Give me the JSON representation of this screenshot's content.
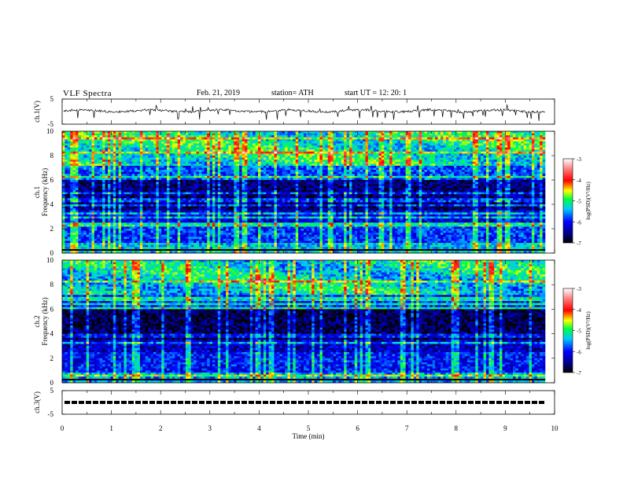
{
  "header": {
    "title": "VLF Spectra",
    "date": "Feb. 21, 2019",
    "station": "station= ATH",
    "start": "start  UT  =   12: 20: 1"
  },
  "chart_data": [
    {
      "type": "line",
      "name": "ch1-waveform",
      "ylabel": "ch.1(V)",
      "ylim": [
        -5,
        5
      ],
      "yticks": [
        "5",
        "-5"
      ],
      "x_range_min": [
        0,
        9.8
      ]
    },
    {
      "type": "heatmap",
      "name": "ch1-spectrogram",
      "ylabel": "ch.1\nFrequency (kHz)",
      "ylim": [
        0,
        10
      ],
      "yticks": [
        "0",
        "2",
        "4",
        "6",
        "8",
        "10"
      ],
      "colorbar": {
        "label": "log(PSD)(V²/Hz)",
        "range": [
          -7,
          -3
        ],
        "ticks": [
          "-3",
          "-4",
          "-5",
          "-6",
          "-7"
        ]
      }
    },
    {
      "type": "heatmap",
      "name": "ch2-spectrogram",
      "ylabel": "ch.2\nFrequency (kHz)",
      "ylim": [
        0,
        10
      ],
      "yticks": [
        "0",
        "2",
        "4",
        "6",
        "8",
        "10"
      ],
      "colorbar": {
        "label": "log(PSD)(V²/Hz)",
        "range": [
          -7,
          -3
        ],
        "ticks": [
          "-3",
          "-4",
          "-5",
          "-6",
          "-7"
        ]
      }
    },
    {
      "type": "line",
      "name": "ch3-waveform",
      "ylabel": "ch.3(V)",
      "ylim": [
        -5,
        5
      ],
      "yticks": [
        "5",
        "-5"
      ]
    }
  ],
  "xaxis": {
    "label": "Time  (min)",
    "range": [
      0,
      10
    ],
    "ticks": [
      "0",
      "1",
      "2",
      "3",
      "4",
      "5",
      "6",
      "7",
      "8",
      "9",
      "10"
    ]
  },
  "colors": {
    "bg": "#ffffff",
    "frame": "#000000",
    "trace": "#000000"
  }
}
